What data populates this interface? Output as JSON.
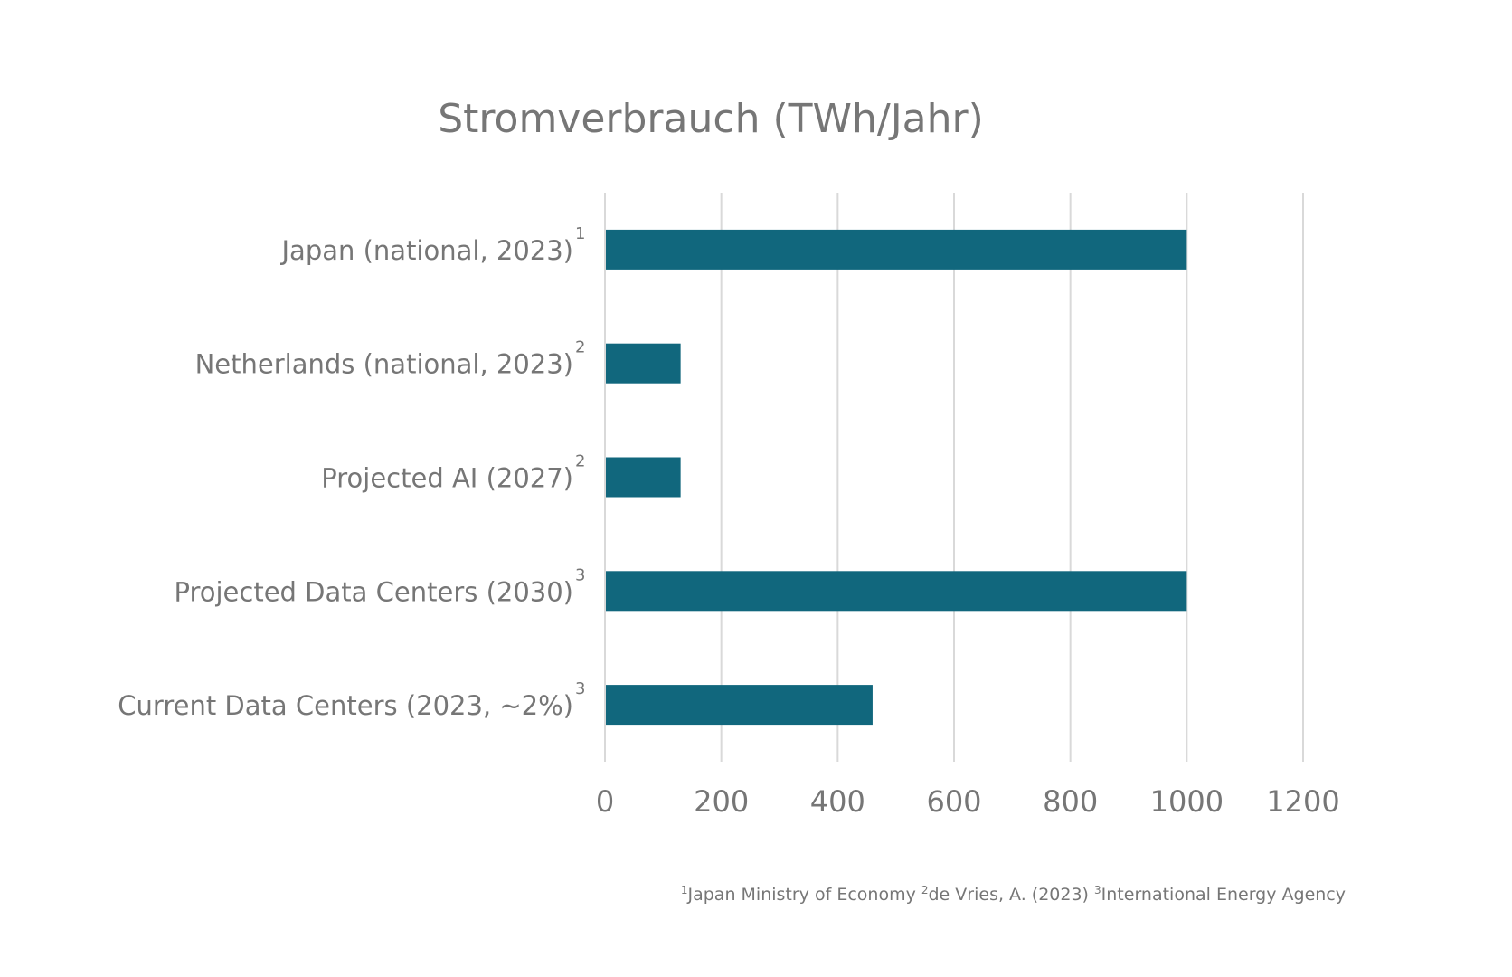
{
  "chart_data": {
    "type": "bar",
    "orientation": "horizontal",
    "title": "Stromverbrauch (TWh/Jahr)",
    "xlabel": "",
    "ylabel": "",
    "xlim": [
      0,
      1200
    ],
    "ticks": [
      0,
      200,
      400,
      600,
      800,
      1000,
      1200
    ],
    "grid": "vertical",
    "categories": [
      {
        "label": "Japan (national, 2023)",
        "sup": "1"
      },
      {
        "label": "Netherlands (national, 2023)",
        "sup": "2"
      },
      {
        "label": "Projected AI (2027)",
        "sup": "2"
      },
      {
        "label": "Projected Data Centers (2030)",
        "sup": "3"
      },
      {
        "label": "Current Data Centers (2023, ~2%)",
        "sup": "3"
      }
    ],
    "values": [
      1000,
      130,
      130,
      1000,
      460
    ],
    "bar_color": "#11677d",
    "grid_color": "#d9d9d9",
    "text_color": "#767676",
    "sources": [
      {
        "sup": "1",
        "text": "Japan Ministry of Economy "
      },
      {
        "sup": "2",
        "text": "de Vries, A. (2023) "
      },
      {
        "sup": "3",
        "text": "International Energy Agency"
      }
    ]
  }
}
